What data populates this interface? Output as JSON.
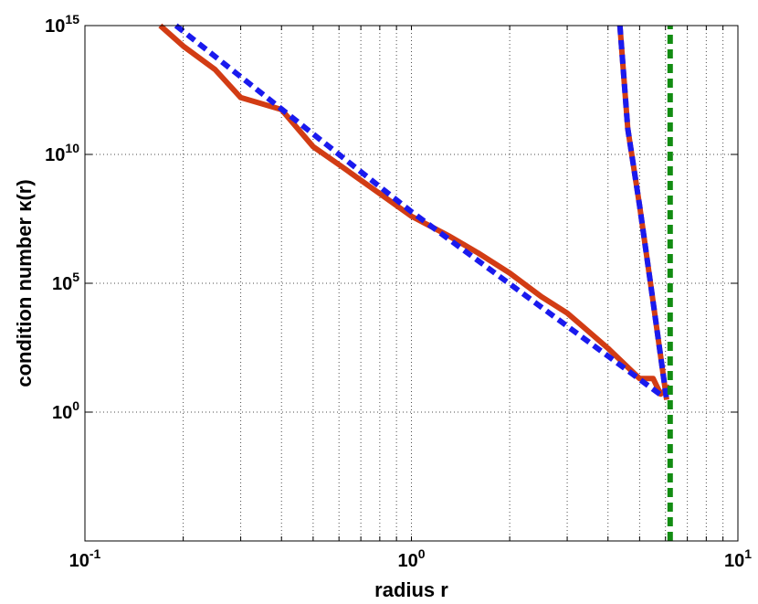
{
  "chart_data": {
    "type": "line",
    "title": "",
    "xlabel": "radius r",
    "ylabel": "condition number κ(r)",
    "x_scale": "log",
    "y_scale": "log",
    "xlim": [
      0.1,
      10
    ],
    "ylim": [
      1e-05,
      1000000000000000.0
    ],
    "grid": true,
    "x_ticks": [
      {
        "value": 0.1,
        "base": "10",
        "exp": "-1"
      },
      {
        "value": 1,
        "base": "10",
        "exp": "0"
      },
      {
        "value": 10,
        "base": "10",
        "exp": "1"
      }
    ],
    "y_ticks": [
      {
        "value": 1,
        "base": "10",
        "exp": "0"
      },
      {
        "value": 100000,
        "base": "10",
        "exp": "5"
      },
      {
        "value": 10000000000,
        "base": "10",
        "exp": "10"
      },
      {
        "value": 1000000000000000,
        "base": "10",
        "exp": "15"
      }
    ],
    "series": [
      {
        "color": "#d23c14",
        "style": "solid",
        "x": [
          0.17,
          0.2,
          0.25,
          0.3,
          0.4,
          0.5,
          0.6,
          0.8,
          1.0,
          1.3,
          1.6,
          2.0,
          2.5,
          3.0,
          4.0,
          5.0,
          5.5,
          5.8,
          6.0,
          6.2
        ],
        "y": [
          1000000000000000.0,
          160000000000000.0,
          20000000000000.0,
          1600000000000.0,
          550000000000.0,
          20000000000.0,
          4000000000.0,
          300000000.0,
          40000000.0,
          7000000.0,
          1500000.0,
          250000.0,
          30000.0,
          7000.0,
          300,
          20,
          20,
          5,
          7,
          10
        ]
      },
      {
        "color": "#d23c14",
        "style": "solid",
        "x": [
          4.35,
          4.6,
          5.0,
          5.4,
          6.05
        ],
        "y": [
          1000000000000000.0,
          100000000000.0,
          100000000.0,
          100000.0,
          3
        ]
      },
      {
        "color": "#1a1aee",
        "style": "dashed",
        "x": [
          0.19,
          1.0,
          5.9
        ],
        "y": [
          1000000000000000.0,
          60000000.0,
          4
        ]
      },
      {
        "color": "#1a1aee",
        "style": "dashed",
        "x": [
          4.35,
          4.6,
          5.0,
          5.4,
          6.05
        ],
        "y": [
          1000000000000000.0,
          100000000000.0,
          100000000.0,
          100000.0,
          3
        ]
      },
      {
        "color": "#128c12",
        "style": "dashed",
        "x": [
          6.2,
          6.2
        ],
        "y": [
          1e-05,
          1000000000000000.0
        ]
      }
    ]
  }
}
